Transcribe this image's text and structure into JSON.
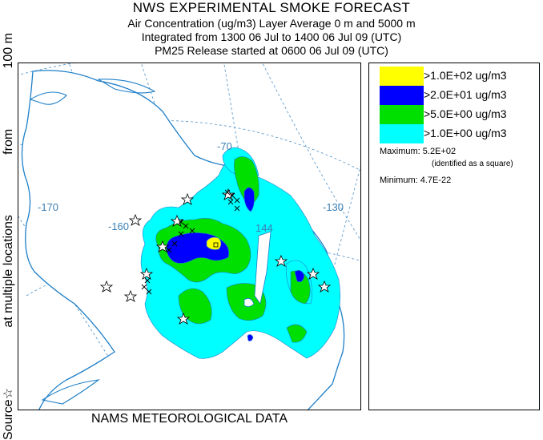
{
  "header": {
    "title": "NWS EXPERIMENTAL SMOKE FORECAST",
    "line1": "Air Concentration (ug/m3) Layer Average    0 m and  5000 m",
    "line2": "Integrated from 1300 06 Jul to 1400 06 Jul 09 (UTC)",
    "line3": "PM25 Release started at 0600 06 Jul 09 (UTC)"
  },
  "side_label": {
    "part1": "Source☆",
    "part2": "at multiple locations",
    "part3": "from",
    "part4": "100 m"
  },
  "map": {
    "lon_labels": [
      "-170",
      "-160",
      "-70",
      "-130"
    ],
    "overlay_labels": [
      "144"
    ]
  },
  "legend": {
    "entries": [
      {
        "label": ">1.0E+02 ug/m3",
        "color": "#ffff00"
      },
      {
        "label": ">2.0E+01 ug/m3",
        "color": "#0000ff"
      },
      {
        "label": ">5.0E+00 ug/m3",
        "color": "#00e000"
      },
      {
        "label": ">1.0E+00 ug/m3",
        "color": "#00ffff"
      }
    ],
    "maximum_label": "Maximum: 5.2E+02",
    "maximum_note": "(identified as a square)",
    "minimum_label": "Minimum: 4.7E-22"
  },
  "footer": {
    "text": "NAMS METEOROLOGICAL DATA"
  },
  "colors": {
    "coastline": "#1e7fc8",
    "graticule": "#4a8fc8",
    "level1": "#00ffff",
    "level2": "#00e000",
    "level3": "#0000ff",
    "level4": "#ffff00"
  }
}
